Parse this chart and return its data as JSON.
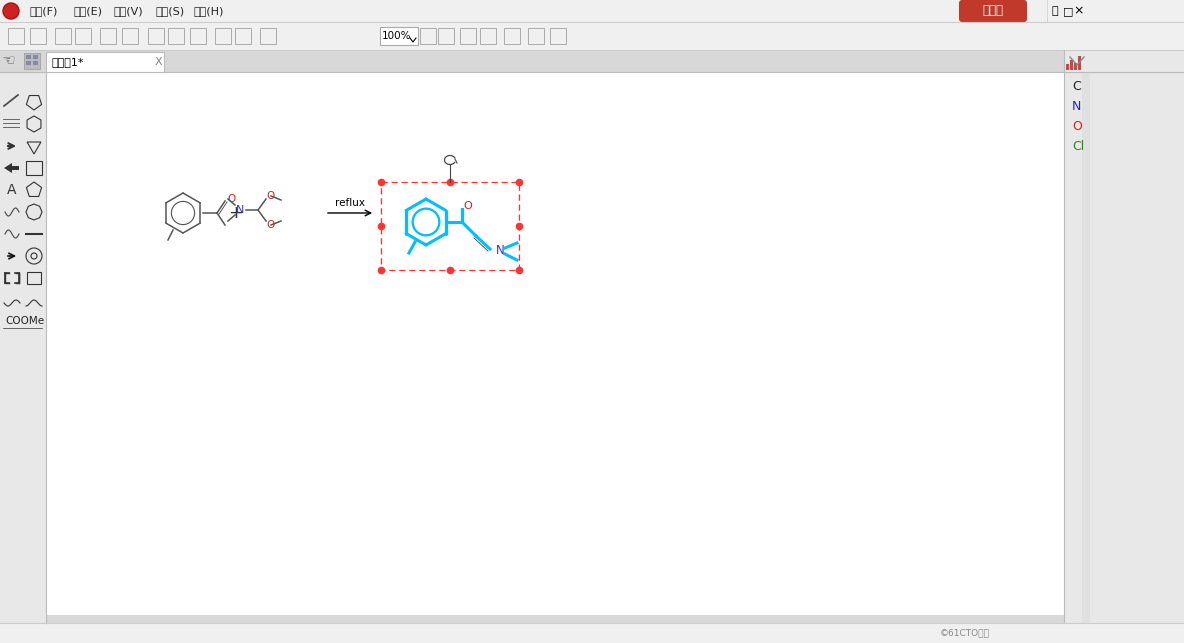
{
  "bg_color": "#f0f0f0",
  "canvas_color": "#ffffff",
  "menubar_bg": "#f0f0f0",
  "toolbar_bg": "#f0f0f0",
  "tabbar_bg": "#e0e0e0",
  "left_panel_bg": "#e8e8e8",
  "right_panel_bg": "#e8e8e8",
  "status_bar_bg": "#f0f0f0",
  "title_bar_bg": "#f0f0f0",
  "menu_items": [
    "文件(F)",
    "编辑(E)",
    "视图(V)",
    "选项(S)",
    "帮助(H)"
  ],
  "login_btn_color": "#c0392b",
  "login_btn_text": "未登录",
  "login_btn_text_color": "#ffffff",
  "tab_text": "未命名1*",
  "right_labels": [
    "C",
    "N",
    "O",
    "Cl"
  ],
  "right_label_colors": [
    "#222222",
    "#2222cc",
    "#cc2222",
    "#228822"
  ],
  "watermark": "©61CTO博客",
  "mol_line_color": "#555555",
  "mol_highlight_color": "#00bfff",
  "mol_N_color": "#3333bb",
  "mol_O_color": "#cc2222",
  "selection_box_color": "#ff3333",
  "arrow_label": "reflux",
  "line_color": "#cccccc",
  "separator_color": "#bbbbbb"
}
